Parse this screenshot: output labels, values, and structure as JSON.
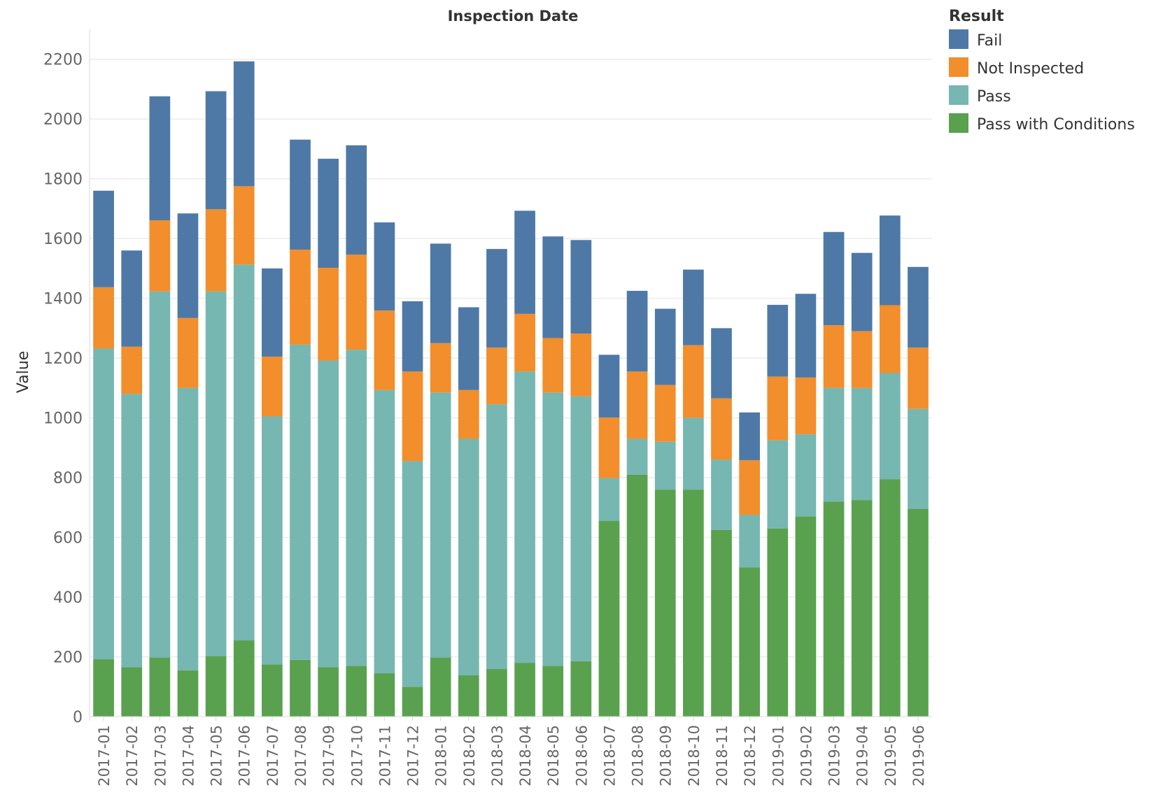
{
  "chart_data": {
    "type": "bar",
    "stacked": true,
    "title": "Inspection Date",
    "xlabel": "",
    "ylabel": "Value",
    "ylim": [
      0,
      2300
    ],
    "yticks": [
      0,
      200,
      400,
      600,
      800,
      1000,
      1200,
      1400,
      1600,
      1800,
      2000,
      2200
    ],
    "grid": true,
    "legend": {
      "title": "Result",
      "position": "top-right"
    },
    "categories": [
      "2017-01",
      "2017-02",
      "2017-03",
      "2017-04",
      "2017-05",
      "2017-06",
      "2017-07",
      "2017-08",
      "2017-09",
      "2017-10",
      "2017-11",
      "2017-12",
      "2018-01",
      "2018-02",
      "2018-03",
      "2018-04",
      "2018-05",
      "2018-06",
      "2018-07",
      "2018-08",
      "2018-09",
      "2018-10",
      "2018-11",
      "2018-12",
      "2019-01",
      "2019-02",
      "2019-03",
      "2019-04",
      "2019-05",
      "2019-06"
    ],
    "series": [
      {
        "name": "Pass with Conditions",
        "color": "#59a14f",
        "values": [
          192,
          165,
          198,
          155,
          203,
          255,
          175,
          190,
          165,
          170,
          145,
          100,
          198,
          138,
          160,
          180,
          170,
          185,
          655,
          810,
          760,
          760,
          625,
          500,
          630,
          670,
          720,
          725,
          795,
          695
        ]
      },
      {
        "name": "Pass",
        "color": "#76b7b2",
        "values": [
          1040,
          915,
          1225,
          945,
          1220,
          1258,
          830,
          1055,
          1027,
          1058,
          948,
          755,
          887,
          792,
          885,
          975,
          915,
          887,
          143,
          120,
          160,
          240,
          235,
          175,
          295,
          275,
          380,
          375,
          355,
          335
        ]
      },
      {
        "name": "Not Inspected",
        "color": "#f28e2b",
        "values": [
          205,
          158,
          238,
          234,
          275,
          262,
          200,
          318,
          310,
          318,
          266,
          300,
          165,
          163,
          190,
          193,
          182,
          210,
          203,
          225,
          190,
          243,
          205,
          183,
          213,
          190,
          210,
          190,
          227,
          205
        ]
      },
      {
        "name": "Fail",
        "color": "#4e79a7",
        "values": [
          323,
          322,
          415,
          350,
          395,
          418,
          295,
          368,
          365,
          366,
          295,
          235,
          333,
          277,
          330,
          345,
          340,
          313,
          210,
          270,
          255,
          253,
          235,
          160,
          240,
          280,
          312,
          262,
          300,
          270
        ]
      }
    ]
  }
}
